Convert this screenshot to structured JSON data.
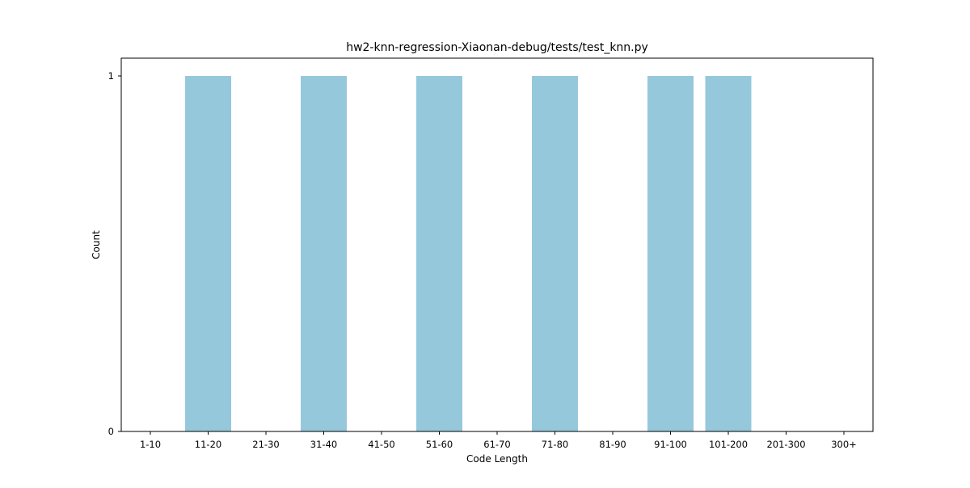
{
  "chart_data": {
    "type": "bar",
    "title": "hw2-knn-regression-Xiaonan-debug/tests/test_knn.py",
    "xlabel": "Code Length",
    "ylabel": "Count",
    "categories": [
      "1-10",
      "11-20",
      "21-30",
      "31-40",
      "41-50",
      "51-60",
      "61-70",
      "71-80",
      "81-90",
      "91-100",
      "101-200",
      "201-300",
      "300+"
    ],
    "values": [
      0,
      1,
      0,
      1,
      0,
      1,
      0,
      1,
      0,
      1,
      1,
      0,
      0
    ],
    "ylim": [
      0,
      1.05
    ],
    "yticks": [
      0,
      1
    ],
    "grid": false,
    "bar_color": "#96c8dc"
  }
}
